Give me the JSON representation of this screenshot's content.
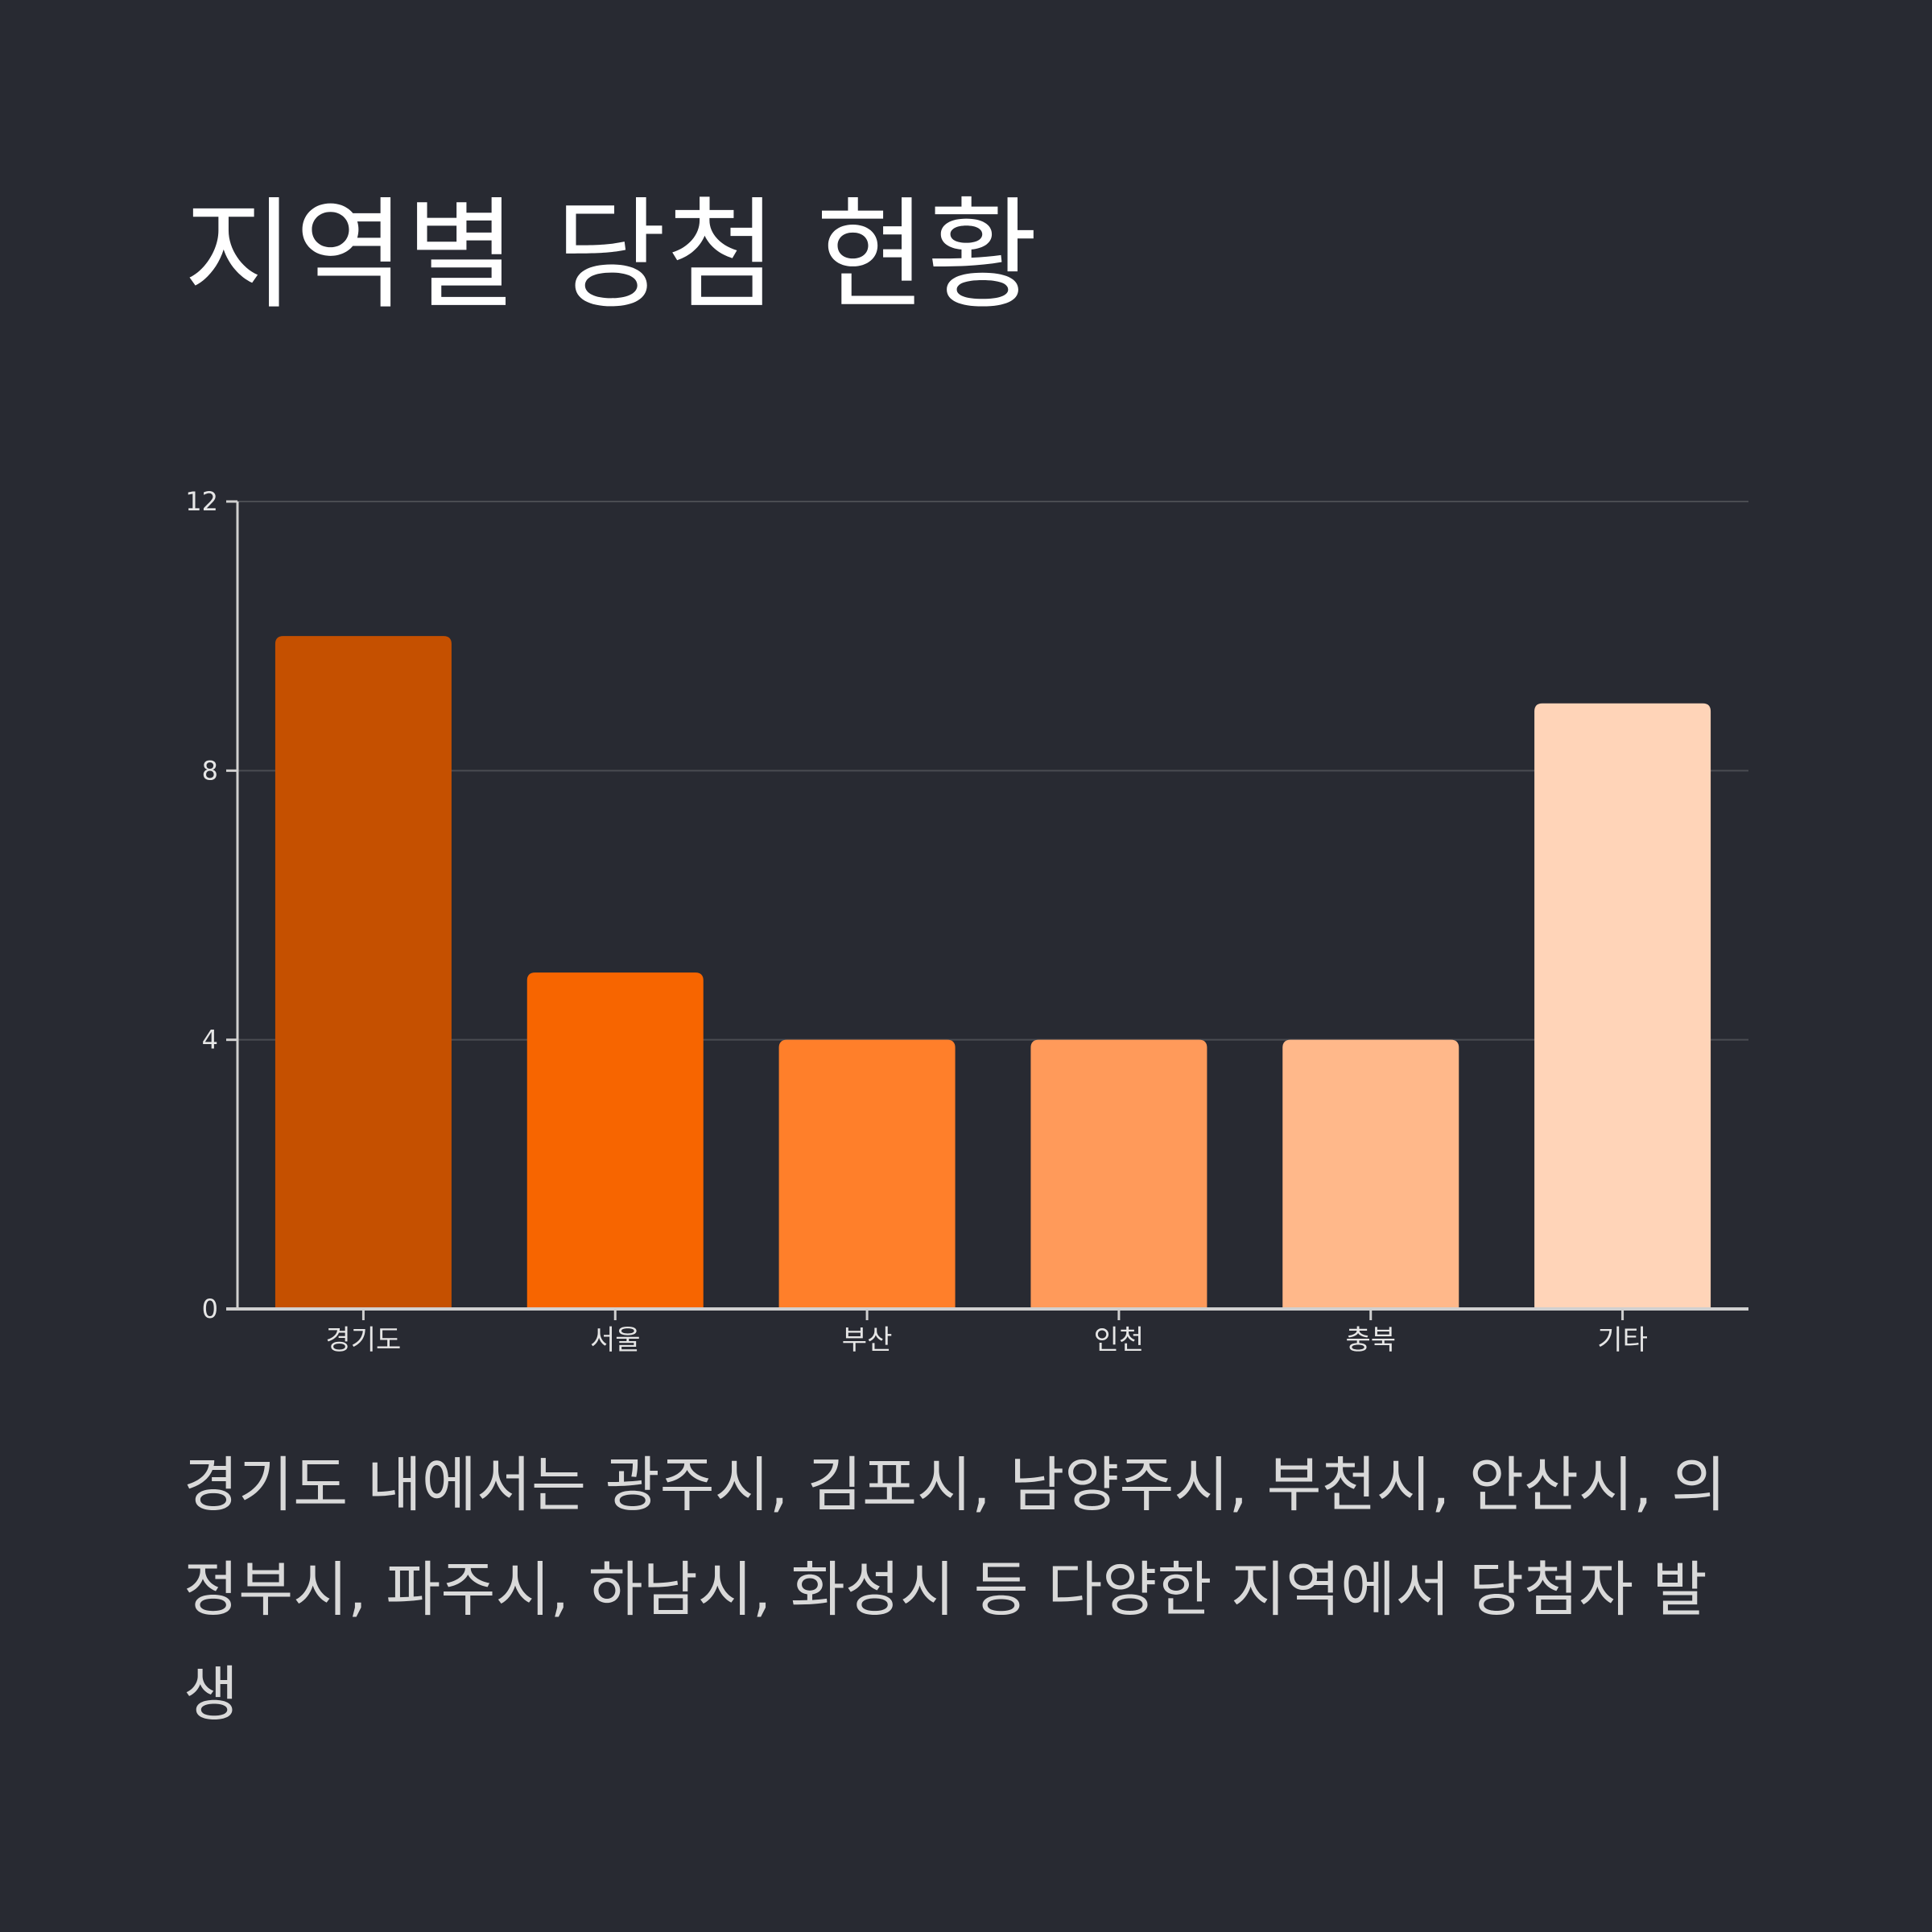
{
  "title": "지역별 당첨 현황",
  "description": "경기도 내에서는 광주시, 김포시, 남양주시, 부천시, 안산시, 의정부시, 파주시, 하남시, 화성시 등 다양한 지역에서 당첨자 발생",
  "chart_data": {
    "type": "bar",
    "title": "지역별 당첨 현황",
    "xlabel": "",
    "ylabel": "",
    "categories": [
      "경기도",
      "서울",
      "부산",
      "인천",
      "충북",
      "기타"
    ],
    "values": [
      10,
      5,
      4,
      4,
      4,
      9
    ],
    "colors": [
      "#c55000",
      "#f76500",
      "#ff7f2a",
      "#ff9a5a",
      "#ffb88a",
      "#ffd4b8"
    ],
    "ylim": [
      0,
      12
    ],
    "yticks": [
      0,
      4,
      8,
      12
    ],
    "grid": true,
    "legend": "none"
  }
}
